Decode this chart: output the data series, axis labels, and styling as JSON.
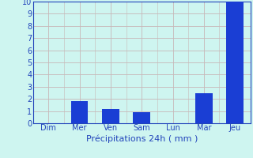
{
  "categories": [
    "Dim",
    "Mer",
    "Ven",
    "Sam",
    "Lun",
    "Mar",
    "Jeu"
  ],
  "values": [
    0,
    1.8,
    1.2,
    0.9,
    0,
    2.5,
    10
  ],
  "bar_color": "#1a3ed4",
  "background_color": "#cef5f0",
  "grid_color": "#c8b8b8",
  "xlabel": "Précipitations 24h ( mm )",
  "xlabel_color": "#2244bb",
  "ylim": [
    0,
    10
  ],
  "yticks": [
    0,
    1,
    2,
    3,
    4,
    5,
    6,
    7,
    8,
    9,
    10
  ],
  "tick_color": "#2244bb",
  "axis_color": "#2244bb",
  "xlabel_fontsize": 8,
  "tick_fontsize": 7,
  "bar_width": 0.55
}
